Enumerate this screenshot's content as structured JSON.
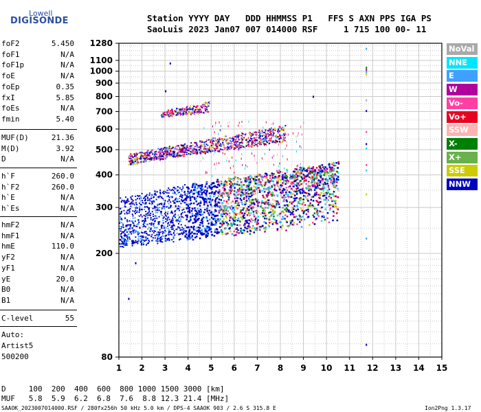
{
  "logo": {
    "top": "Lowell",
    "bottom": "DIGISONDE"
  },
  "header": {
    "line1": "Station YYYY DAY   DDD HHMMSS P1   FFS S AXN PPS IGA PS",
    "line2": "SaoLuis 2023 Jan07 007 014000 RSF     1 715 100 00- 11"
  },
  "params": {
    "group1": [
      {
        "label": "foF2",
        "value": "5.450"
      },
      {
        "label": "foF1",
        "value": "N/A"
      },
      {
        "label": "foF1p",
        "value": "N/A"
      },
      {
        "label": "foE",
        "value": "N/A"
      },
      {
        "label": "foEp",
        "value": "0.35"
      },
      {
        "label": "fxI",
        "value": "5.85"
      },
      {
        "label": "foEs",
        "value": "N/A"
      },
      {
        "label": "fmin",
        "value": "5.40"
      }
    ],
    "group2": [
      {
        "label": "MUF(D)",
        "value": "21.36"
      },
      {
        "label": "M(D)",
        "value": "3.92"
      },
      {
        "label": "D",
        "value": "N/A"
      }
    ],
    "group3": [
      {
        "label": "h`F",
        "value": "260.0"
      },
      {
        "label": "h`F2",
        "value": "260.0"
      },
      {
        "label": "h`E",
        "value": "N/A"
      },
      {
        "label": "h`Es",
        "value": "N/A"
      }
    ],
    "group4": [
      {
        "label": "hmF2",
        "value": "N/A"
      },
      {
        "label": "hmF1",
        "value": "N/A"
      },
      {
        "label": "hmE",
        "value": "110.0"
      },
      {
        "label": "yF2",
        "value": "N/A"
      },
      {
        "label": "yF1",
        "value": "N/A"
      },
      {
        "label": "yE",
        "value": "20.0"
      },
      {
        "label": "B0",
        "value": "N/A"
      },
      {
        "label": "B1",
        "value": "N/A"
      }
    ],
    "clevel": {
      "label": "C-level",
      "value": "55"
    },
    "auto": [
      "Auto:",
      "Artist5",
      "500200"
    ]
  },
  "footer": {
    "d_row": "D     100  200  400  600  800 1000 1500 3000 [km]",
    "muf_row": "MUF   5.8  5.9  6.2  6.8  7.6  8.8 12.3 21.4 [MHz]",
    "credit_left": "SAAOK_2023007014000.RSF / 280fx256h 50 kHz 5.0 km / DPS-4 SAAOK 903 / 2.6 S 315.8 E",
    "credit_right": "Ion2Png 1.3.17"
  },
  "legend": [
    {
      "label": "NoVal",
      "color": "#a9a9a9"
    },
    {
      "label": "NNE",
      "color": "#00e5ff"
    },
    {
      "label": "E",
      "color": "#3fa0ff"
    },
    {
      "label": "W",
      "color": "#b0009e"
    },
    {
      "label": "Vo-",
      "color": "#ff3fa6"
    },
    {
      "label": "Vo+",
      "color": "#ea0020"
    },
    {
      "label": "SSW",
      "color": "#ffb3b3"
    },
    {
      "label": "X-",
      "color": "#008000"
    },
    {
      "label": "X+",
      "color": "#6ab04c"
    },
    {
      "label": "SSE",
      "color": "#cccc00"
    },
    {
      "label": "NNW",
      "color": "#0000c0"
    }
  ],
  "chart_data": {
    "type": "scatter",
    "xlim": [
      1,
      15
    ],
    "ylim": [
      80,
      1280
    ],
    "yscale": "log",
    "x_ticks": [
      1,
      2,
      3,
      4,
      5,
      6,
      7,
      8,
      9,
      10,
      11,
      12,
      13,
      14,
      15
    ],
    "y_ticks": [
      80,
      200,
      300,
      400,
      500,
      600,
      700,
      800,
      900,
      1000,
      1100,
      1280
    ],
    "grid": true,
    "legend_placement": "right",
    "traces": [
      {
        "name": "F trace (1st hop)",
        "x_start": 1.0,
        "x_end": 10.5,
        "h_start": 215,
        "h_end": 260,
        "spread_top": [
          330,
          450
        ]
      },
      {
        "name": "F trace (2nd hop)",
        "x_start": 1.4,
        "x_end": 8.2,
        "h_start": 440,
        "h_end": 540,
        "spread_top": [
          480,
          620
        ]
      },
      {
        "name": "F trace (3rd hop)",
        "x_start": 2.8,
        "x_end": 4.9,
        "h_start": 670,
        "h_end": 700,
        "spread_top": [
          700,
          770
        ]
      }
    ],
    "markers_x": 11.7
  }
}
